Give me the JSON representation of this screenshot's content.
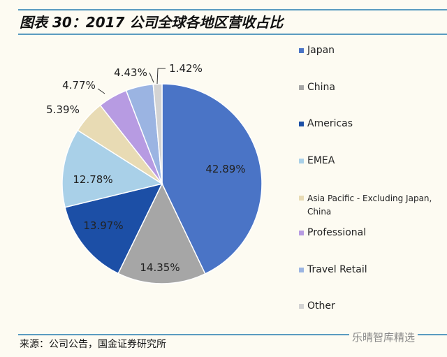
{
  "title": "图表 30：2017 公司全球各地区营收占比",
  "source": "来源：公司公告，国金证券研究所",
  "watermark": "乐晴智库精选",
  "chart_data": {
    "type": "pie",
    "title": "",
    "legend_position": "right",
    "categories": [
      "Japan",
      "China",
      "Americas",
      "EMEA",
      "Asia Pacific - Excluding Japan, China",
      "Professional",
      "Travel Retail",
      "Other"
    ],
    "values": [
      42.89,
      14.35,
      13.97,
      12.78,
      5.39,
      4.77,
      4.43,
      1.42
    ],
    "labels": [
      "42.89%",
      "14.35%",
      "13.97%",
      "12.78%",
      "5.39%",
      "4.77%",
      "4.43%",
      "1.42%"
    ],
    "colors": [
      "#4a74c6",
      "#a6a6a6",
      "#1c4fa6",
      "#a9d0e8",
      "#e8dbb4",
      "#b79be2",
      "#9bb4e2",
      "#d3d3d3"
    ]
  }
}
